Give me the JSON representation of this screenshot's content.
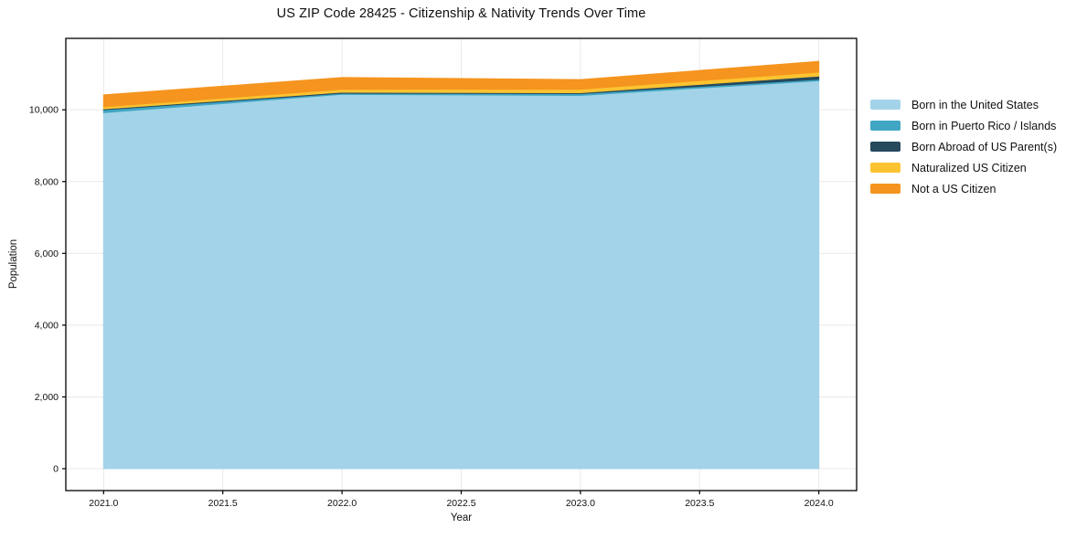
{
  "chart_data": {
    "type": "area",
    "stacked": true,
    "title": "US ZIP Code 28425 - Citizenship & Nativity Trends Over Time",
    "xlabel": "Year",
    "ylabel": "Population",
    "x": [
      2021,
      2022,
      2023,
      2024
    ],
    "series": [
      {
        "name": "Born in the United States",
        "color": "#a3d3e8",
        "values": [
          9920,
          10430,
          10400,
          10810
        ]
      },
      {
        "name": "Born in Puerto Rico / Islands",
        "color": "#41a6c4",
        "values": [
          80,
          30,
          50,
          40
        ]
      },
      {
        "name": "Born Abroad of US Parent(s)",
        "color": "#26495c",
        "values": [
          25,
          30,
          25,
          90
        ]
      },
      {
        "name": "Naturalized US Citizen",
        "color": "#fcc331",
        "values": [
          60,
          80,
          100,
          110
        ]
      },
      {
        "name": "Not a US Citizen",
        "color": "#f5941f",
        "values": [
          330,
          330,
          265,
          300
        ]
      }
    ],
    "stack_totals": [
      10415,
      10900,
      10840,
      11350
    ],
    "xticks": {
      "values": [
        2021.0,
        2021.5,
        2022.0,
        2022.5,
        2023.0,
        2023.5,
        2024.0
      ],
      "labels": [
        "2021.0",
        "2021.5",
        "2022.0",
        "2022.5",
        "2023.0",
        "2023.5",
        "2024.0"
      ]
    },
    "yticks": {
      "values": [
        0,
        2000,
        4000,
        6000,
        8000,
        10000
      ],
      "labels": [
        "0",
        "2,000",
        "4,000",
        "6,000",
        "8,000",
        "10,000"
      ]
    },
    "xlim": [
      2020.8415,
      2024.1585
    ],
    "ylim": [
      -610,
      11990
    ],
    "grid": true,
    "legend_position": "right of plot",
    "colors": {
      "grid": "#e9e9e9",
      "spine": "#000000",
      "tick_text": "#101010",
      "background": "#ffffff"
    }
  }
}
